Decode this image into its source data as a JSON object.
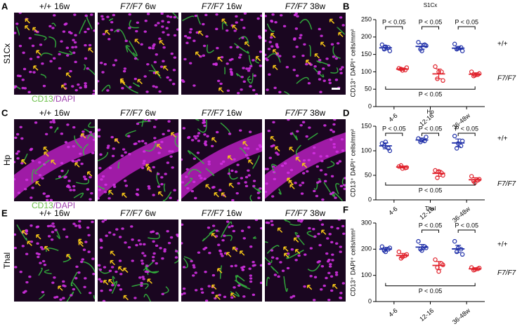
{
  "image_panels": [
    {
      "letter": "A",
      "region": "S1Cx",
      "stain": [
        "CD13",
        "/DAPI"
      ]
    },
    {
      "letter": "C",
      "region": "Hp",
      "stain": [
        "CD13",
        "/DAPI"
      ]
    },
    {
      "letter": "E",
      "region": "Thal"
    }
  ],
  "columns": [
    {
      "genotype": "+/+",
      "age": "16w"
    },
    {
      "genotype": "F7/F7",
      "age": "6w"
    },
    {
      "genotype": "F7/F7",
      "age": "16w"
    },
    {
      "genotype": "F7/F7",
      "age": "38w"
    }
  ],
  "chart_data": [
    {
      "panel": "B",
      "type": "scatter",
      "title": "S1Cx",
      "ylabel": "CD13⁺ DAPI⁺ cells/mm²",
      "categories": [
        "4-6",
        "12-16",
        "36-48w"
      ],
      "series": [
        {
          "name": "+/+",
          "color": "#1f2fa8",
          "values": [
            [
              178,
              170,
              165,
              160,
              172
            ],
            [
              185,
              178,
              165,
              175,
              160
            ],
            [
              180,
              170,
              165,
              160,
              168
            ]
          ],
          "mean": [
            169,
            173,
            168
          ],
          "sem": [
            6,
            8,
            5
          ]
        },
        {
          "name": "F7/F7",
          "color": "#e0202a",
          "values": [
            [
              110,
              105,
              108,
              112,
              104
            ],
            [
              115,
              100,
              80,
              75,
              100
            ],
            [
              100,
              92,
              88,
              95,
              90
            ]
          ],
          "mean": [
            108,
            94,
            93
          ],
          "sem": [
            3,
            14,
            4
          ]
        }
      ],
      "ylim": [
        0,
        250
      ],
      "yticks": [
        0,
        50,
        100,
        150,
        200,
        250
      ],
      "annotations": [
        "P < 0.05",
        "P < 0.05",
        "P < 0.05",
        "P < 0.05"
      ]
    },
    {
      "panel": "D",
      "type": "scatter",
      "title": "Hp",
      "ylabel": "CD13⁺ DAPI⁺ cells/mm²",
      "categories": [
        "4-6",
        "12-16",
        "36-48w"
      ],
      "series": [
        {
          "name": "+/+",
          "color": "#1f2fa8",
          "values": [
            [
              115,
              105,
              110,
              100,
              118
            ],
            [
              125,
              120,
              118,
              128,
              122
            ],
            [
              130,
              110,
              105,
              120,
              115
            ]
          ],
          "mean": [
            110,
            122,
            116
          ],
          "sem": [
            6,
            4,
            8
          ]
        },
        {
          "name": "F7/F7",
          "color": "#e0202a",
          "values": [
            [
              68,
              65,
              70,
              66,
              64
            ],
            [
              60,
              55,
              45,
              50,
              58
            ],
            [
              48,
              40,
              38,
              42,
              35
            ]
          ],
          "mean": [
            67,
            54,
            41
          ],
          "sem": [
            2,
            6,
            4
          ]
        }
      ],
      "ylim": [
        0,
        150
      ],
      "yticks": [
        0,
        50,
        100,
        150
      ],
      "annotations": [
        "P < 0.05",
        "P < 0.05",
        "P < 0.05",
        "P < 0.05"
      ]
    },
    {
      "panel": "F",
      "type": "scatter",
      "title": "Thal",
      "ylabel": "CD13⁺ DAPI⁺ cells/mm²",
      "categories": [
        "4-6",
        "12-16",
        "36-48w"
      ],
      "series": [
        {
          "name": "+/+",
          "color": "#1f2fa8",
          "values": [
            [
              210,
              200,
              195,
              205,
              190
            ],
            [
              230,
              210,
              200,
              205,
              195
            ],
            [
              230,
              200,
              190,
              180,
              205
            ]
          ],
          "mean": [
            200,
            208,
            201
          ],
          "sem": [
            7,
            10,
            14
          ]
        },
        {
          "name": "F7/F7",
          "color": "#e0202a",
          "values": [
            [
              190,
              175,
              165,
              180,
              170
            ],
            [
              160,
              145,
              130,
              140,
              115
            ],
            [
              130,
              125,
              120,
              128,
              122
            ]
          ],
          "mean": [
            176,
            138,
            125
          ],
          "sem": [
            8,
            15,
            4
          ]
        }
      ],
      "ylim": [
        0,
        300
      ],
      "yticks": [
        0,
        100,
        200,
        300
      ],
      "annotations": [
        "P < 0.05",
        "P < 0.05",
        "P < 0.05"
      ]
    }
  ]
}
